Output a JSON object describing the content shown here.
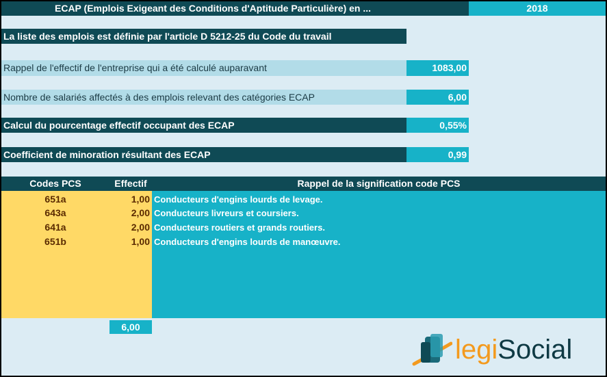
{
  "header": {
    "title": "ECAP (Emplois Exigeant des Conditions d'Aptitude Particulière) en ...",
    "year": "2018"
  },
  "info_line": "La liste des emplois est définie par l'article D 5212-25 du Code du travail",
  "rows": {
    "effectif": {
      "label": "Rappel de l'effectif de l'entreprise qui a été calculé auparavant",
      "value": "1083,00"
    },
    "salaries": {
      "label": "Nombre de salariés affectés à des emplois relevant des catégories ECAP",
      "value": "6,00"
    },
    "pourcentage": {
      "label": "Calcul du pourcentage effectif occupant des ECAP",
      "value": "0,55%"
    },
    "coefficient": {
      "label": "Coefficient de minoration résultant des ECAP",
      "value": "0,99"
    }
  },
  "table": {
    "headers": {
      "codes": "Codes PCS",
      "effectif": "Effectif",
      "signification": "Rappel de la signification code PCS"
    },
    "rows": [
      {
        "code": "651a",
        "effectif": "1,00",
        "description": "Conducteurs d'engins lourds de levage."
      },
      {
        "code": "643a",
        "effectif": "2,00",
        "description": "Conducteurs livreurs et coursiers."
      },
      {
        "code": "641a",
        "effectif": "2,00",
        "description": "Conducteurs routiers et grands routiers."
      },
      {
        "code": "651b",
        "effectif": "1,00",
        "description": "Conducteurs d'engins lourds de manœuvre."
      }
    ],
    "total": "6,00"
  },
  "logo": {
    "part1": "legi",
    "part2": "Social"
  },
  "colors": {
    "dark": "#0f4a55",
    "teal": "#17b2c8",
    "light": "#b2dce8",
    "yellow": "#ffd966",
    "background": "#dcecf4",
    "logo_orange": "#f39a1e"
  }
}
